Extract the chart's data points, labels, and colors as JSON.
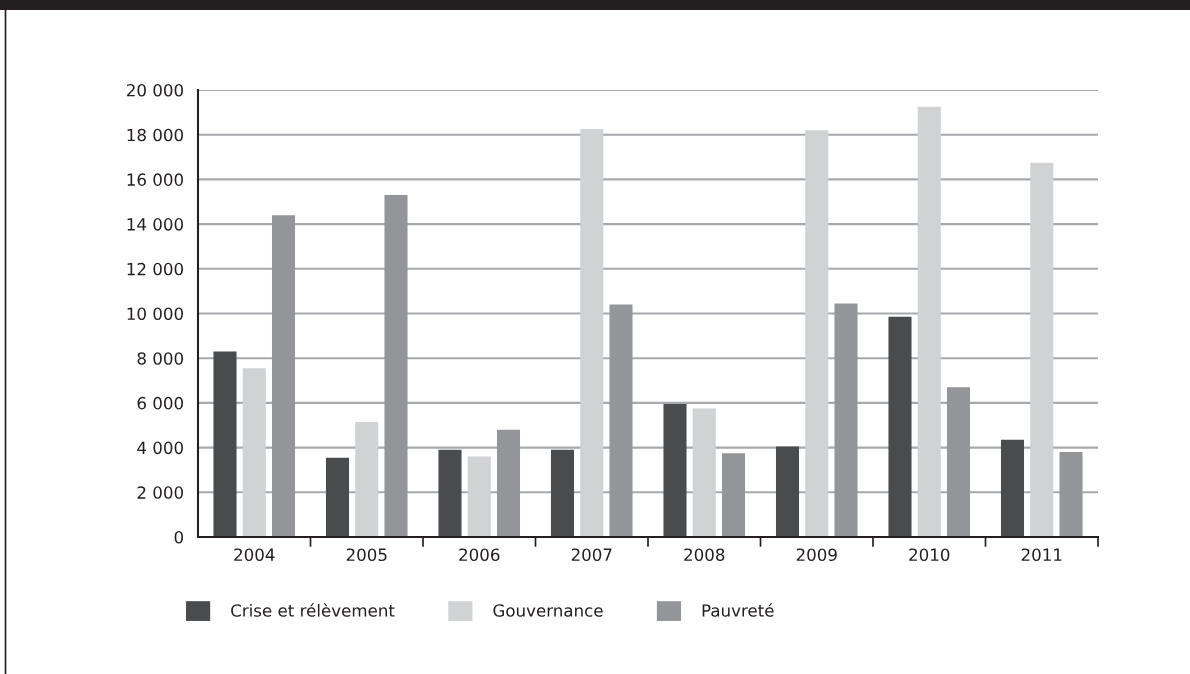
{
  "chart_data": {
    "type": "bar",
    "categories": [
      "2004",
      "2005",
      "2006",
      "2007",
      "2008",
      "2009",
      "2010",
      "2011"
    ],
    "series": [
      {
        "name": "Crise et rélèvement",
        "color": "#4a4b4d",
        "values": [
          8300,
          3550,
          3900,
          3900,
          5950,
          4050,
          9850,
          4350
        ]
      },
      {
        "name": "Gouvernance",
        "color": "#d1d2d4",
        "values": [
          7550,
          5150,
          3600,
          18250,
          5750,
          18200,
          19250,
          16750
        ]
      },
      {
        "name": "Pauvreté",
        "color": "#939598",
        "values": [
          14400,
          15300,
          4800,
          10400,
          3750,
          10450,
          6700,
          3800
        ]
      }
    ],
    "ylim": [
      0,
      20000
    ],
    "yticks": [
      0,
      {
        "value": 2000,
        "label": "2 000"
      },
      {
        "value": 4000,
        "label": "4 000"
      },
      {
        "value": 6000,
        "label": "6 000"
      },
      {
        "value": 8000,
        "label": "8 000"
      },
      {
        "value": 10000,
        "label": "10 000"
      },
      {
        "value": 12000,
        "label": "12 000"
      },
      {
        "value": 14000,
        "label": "14 000"
      },
      {
        "value": 16000,
        "label": "16 000"
      },
      {
        "value": 18000,
        "label": "18 000"
      },
      {
        "value": 20000,
        "label": "20 000"
      }
    ],
    "grid": "y",
    "legend": "bottom left"
  }
}
